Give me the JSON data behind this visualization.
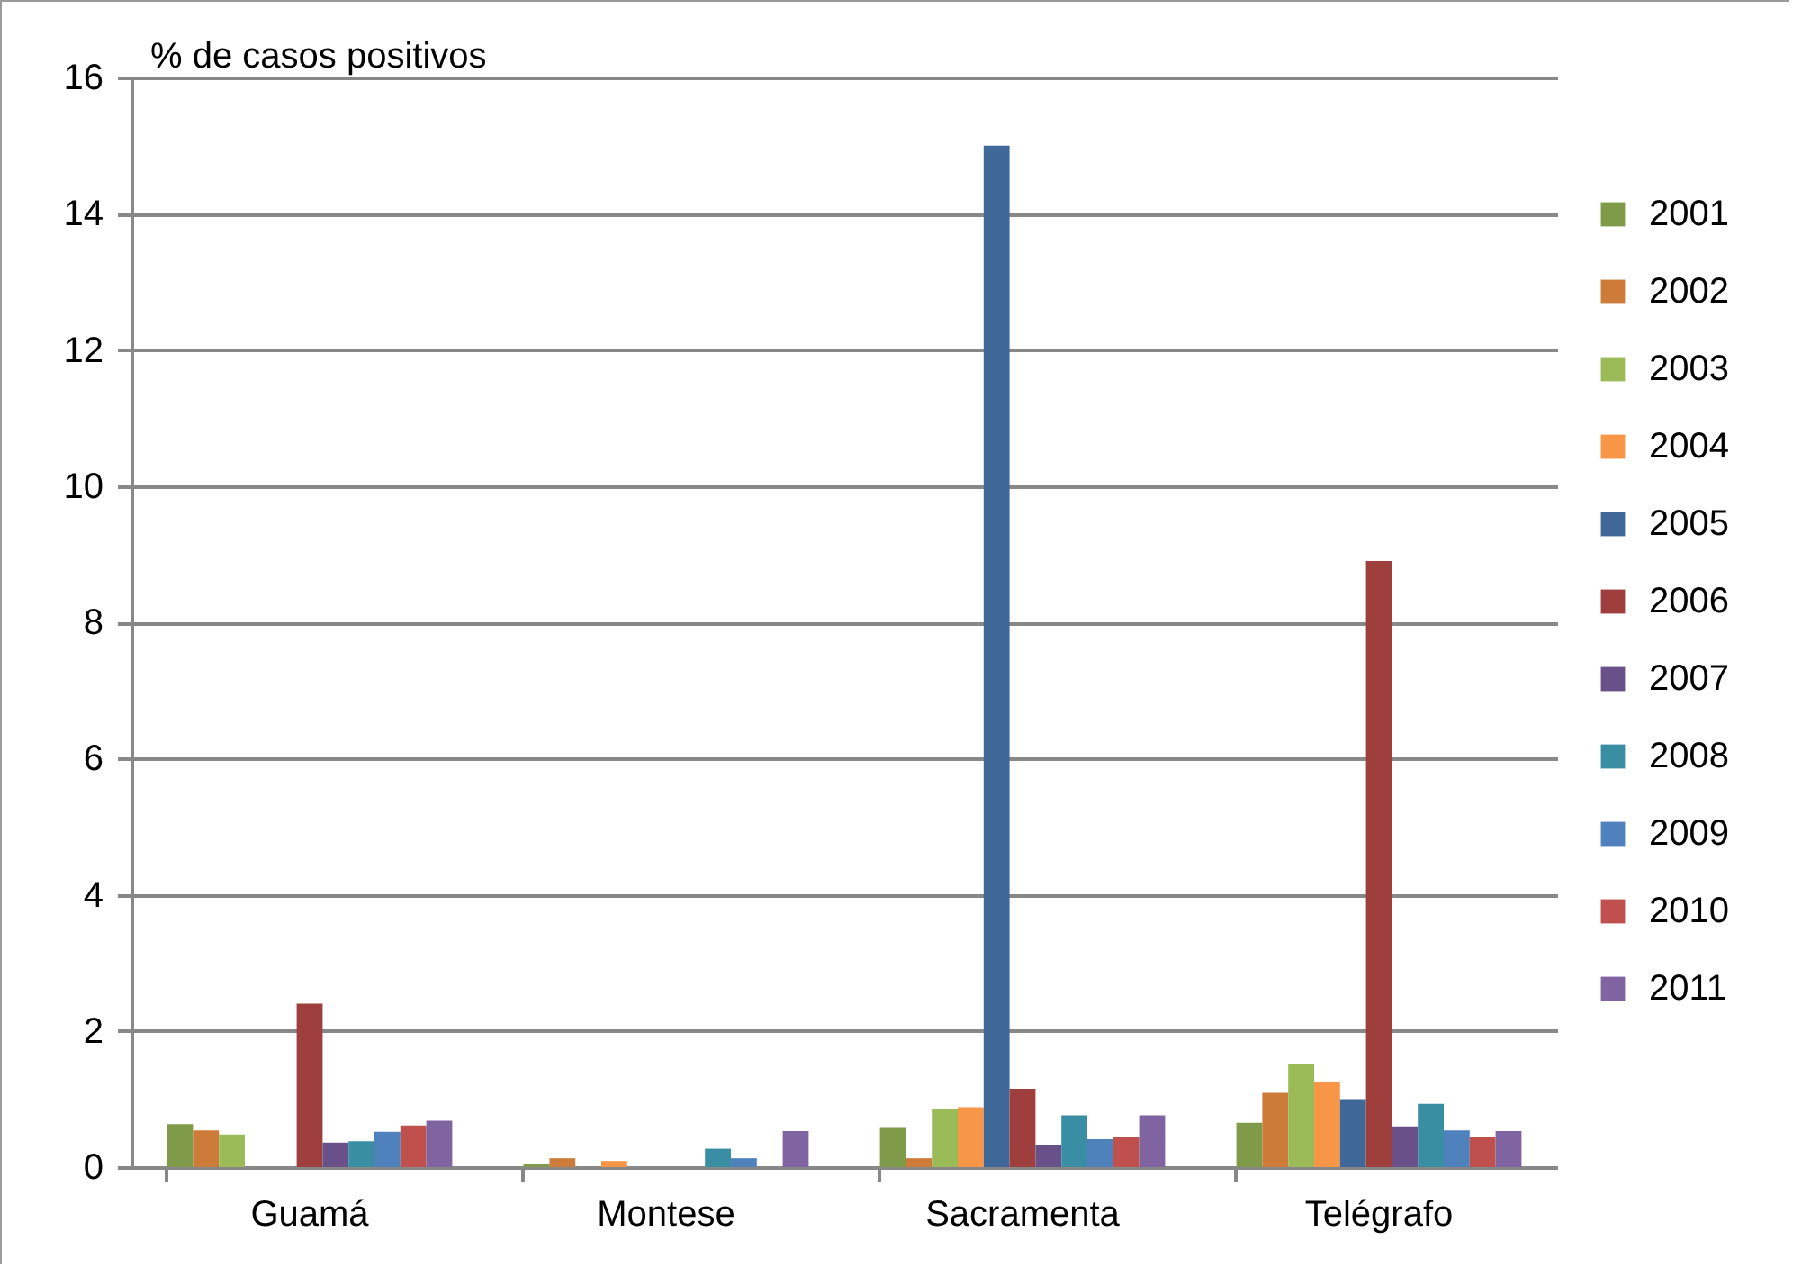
{
  "chart_data": {
    "type": "bar",
    "ylabel": "% de casos positivos",
    "categories": [
      "Guamá",
      "Montese",
      "Sacramenta",
      "Telégrafo"
    ],
    "series": [
      {
        "name": "2001",
        "color": "#7f9a48",
        "values": [
          0.63,
          0.05,
          0.59,
          0.65
        ]
      },
      {
        "name": "2002",
        "color": "#cc7b38",
        "values": [
          0.54,
          0.13,
          0.13,
          1.09
        ]
      },
      {
        "name": "2003",
        "color": "#9bbb59",
        "values": [
          0.48,
          0,
          0.85,
          1.51
        ]
      },
      {
        "name": "2004",
        "color": "#f79646",
        "values": [
          0,
          0.09,
          0.88,
          1.25
        ]
      },
      {
        "name": "2005",
        "color": "#3f6797",
        "values": [
          0,
          0,
          15,
          1.0
        ]
      },
      {
        "name": "2006",
        "color": "#9e3f3d",
        "values": [
          2.4,
          0,
          1.15,
          8.9
        ]
      },
      {
        "name": "2007",
        "color": "#6a5088",
        "values": [
          0.36,
          0,
          0.33,
          0.6
        ]
      },
      {
        "name": "2008",
        "color": "#3a8ea4",
        "values": [
          0.38,
          0.27,
          0.76,
          0.93
        ]
      },
      {
        "name": "2009",
        "color": "#4f81bd",
        "values": [
          0.52,
          0.13,
          0.41,
          0.54
        ]
      },
      {
        "name": "2010",
        "color": "#c0504d",
        "values": [
          0.61,
          0,
          0.44,
          0.44
        ]
      },
      {
        "name": "2011",
        "color": "#8064a2",
        "values": [
          0.68,
          0.53,
          0.76,
          0.53
        ]
      }
    ],
    "ylim": [
      0,
      16
    ],
    "yticks": [
      0,
      2,
      4,
      6,
      8,
      10,
      12,
      14,
      16
    ],
    "grid": "y",
    "legend": "right"
  }
}
